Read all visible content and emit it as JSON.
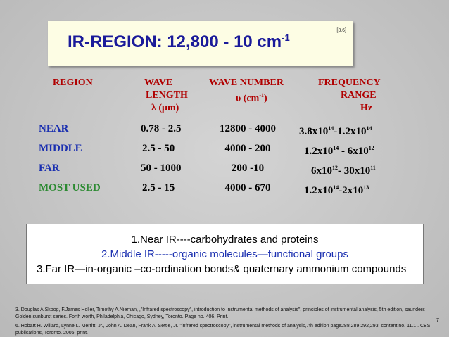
{
  "title": {
    "text": "IR-REGION:  12,800 - 10 cm",
    "superscript": "-1",
    "reference": "[3,6]"
  },
  "table": {
    "headers": {
      "region": "REGION",
      "wavelength": [
        "WAVE",
        "LENGTH",
        "λ (μm)"
      ],
      "wavenumber": [
        "WAVE NUMBER",
        "υ (cm",
        "-1",
        ")"
      ],
      "frequency": [
        "FREQUENCY",
        "RANGE",
        "Hz"
      ]
    },
    "rows": [
      {
        "region": "NEAR",
        "wavelength": "0.78 - 2.5",
        "wavenumber": "12800 - 4000",
        "frequency": [
          "3.8x10",
          "14",
          "-1.2x10",
          "14"
        ]
      },
      {
        "region": "MIDDLE",
        "wavelength": "2.5 - 50",
        "wavenumber": "4000 - 200",
        "frequency": [
          "1.2x10",
          "14",
          " - 6x10",
          "12"
        ]
      },
      {
        "region": "FAR",
        "wavelength": "50 - 1000",
        "wavenumber": "200 -10",
        "frequency": [
          "6x10",
          "12",
          "- 30x10",
          "11"
        ]
      },
      {
        "region": "MOST  USED",
        "wavelength": "2.5 - 15",
        "wavenumber": "4000 - 670",
        "frequency": [
          "1.2x10",
          "14",
          "-2x10",
          "13"
        ]
      }
    ]
  },
  "notes": [
    "1.Near IR----carbohydrates and proteins",
    "2.Middle IR-----organic molecules—functional groups",
    "3.Far IR—in-organic –co-ordination bonds& quaternary ammonium compounds"
  ],
  "references": [
    "3. Douglas A.Skoog, F.James Holler, Timothy A.Nieman, ,\"Infrared spectroscopy\", introduction to instrumental methods of analysis\", principles of instrumental analysis, 5th edition, saunders Golden sunburst series. Forth worth, Philadelphia, Chicago, Sydney, Toronto. Page no. 406. Print.",
    "6. Hobart H. Willard, Lynne L. Merritt. Jr., John A. Dean, Frank A. Settle, Jr. \"infrared spectroscopy\", instrumental methods of analysis,7th edition page288,289,292,293, content no. 11.1 . CBS publications, Toronto. 2005. print."
  ],
  "page_number": "7"
}
